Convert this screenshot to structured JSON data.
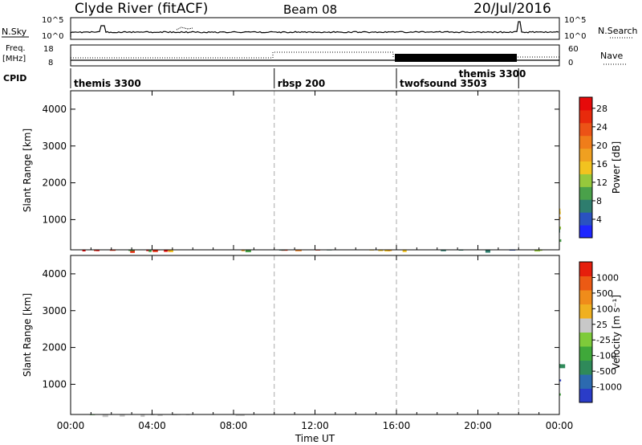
{
  "header": {
    "site": "Clyde River (fitACF)",
    "beam": "Beam 08",
    "date": "20/Jul/2016"
  },
  "top_panels": {
    "nsky_label": "N.Sky",
    "nsearch_label": "N.Search",
    "nsky_ticks": [
      "10^5",
      "10^0"
    ],
    "freq_label": "Freq.",
    "freq_unit": "[MHz]",
    "freq_ticks": [
      "18",
      "8"
    ],
    "nave_label": "Nave",
    "nave_ticks": [
      "60",
      "0"
    ],
    "cpid_label": "CPID",
    "cpid_segments": [
      {
        "name": "themis 3300",
        "start_h": 0,
        "end_h": 10
      },
      {
        "name": "rbsp 200",
        "start_h": 10,
        "end_h": 16
      },
      {
        "name": "twofsound 3503",
        "start_h": 16,
        "end_h": 22
      },
      {
        "name": "themis 3300",
        "start_h": 18.9,
        "end_h": 22
      }
    ]
  },
  "chart_data": [
    {
      "type": "heatmap",
      "title": "",
      "xlabel": "Time UT",
      "ylabel": "Slant Range [km]",
      "x_ticks": [
        "00:00",
        "04:00",
        "08:00",
        "12:00",
        "16:00",
        "20:00",
        "00:00"
      ],
      "y_ticks": [
        1000,
        2000,
        3000,
        4000
      ],
      "ylim": [
        180,
        4500
      ],
      "colorbar": {
        "label": "Power [dB]",
        "tick_labels": [
          "4",
          "8",
          "12",
          "16",
          "20",
          "24",
          "28"
        ],
        "colors": [
          "#1e26ff",
          "#2a52c0",
          "#2e7d6e",
          "#4aa14a",
          "#96c83c",
          "#f2c31f",
          "#f0a020",
          "#f07d1a",
          "#ec5316",
          "#e82a0c",
          "#e60a0a"
        ]
      }
    },
    {
      "type": "heatmap",
      "title": "",
      "xlabel": "Time UT",
      "ylabel": "Slant Range [km]",
      "x_ticks": [
        "00:00",
        "04:00",
        "08:00",
        "12:00",
        "16:00",
        "20:00",
        "00:00"
      ],
      "y_ticks": [
        1000,
        2000,
        3000,
        4000
      ],
      "ylim": [
        180,
        4500
      ],
      "colorbar": {
        "label": "Velocity [m s⁻¹]",
        "tick_labels": [
          "1000",
          "500",
          "100",
          "25",
          "-25",
          "-100",
          "-500",
          "-1000"
        ],
        "colors": [
          "#2a3cc8",
          "#2c6ab0",
          "#2f8a5a",
          "#3fa83a",
          "#7ecb3a",
          "#c8c8c8",
          "#f0b020",
          "#f08c1a",
          "#ec5a14",
          "#e61e0c"
        ]
      }
    }
  ]
}
